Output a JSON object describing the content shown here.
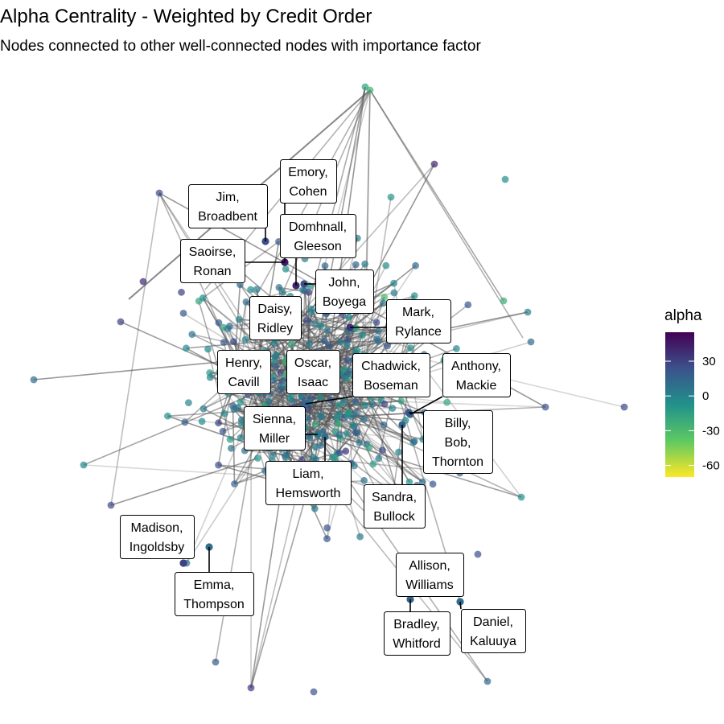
{
  "chart_data": {
    "type": "network",
    "title": "Alpha Centrality - Weighted by Credit Order",
    "subtitle": "Nodes connected to other well-connected nodes with importance factor",
    "legend": {
      "title": "alpha",
      "placement": "right",
      "colormap": "viridis (reversed: high = dark purple, low = yellow)",
      "range": [
        -70,
        55
      ],
      "ticks": [
        30,
        0,
        -30,
        -60
      ]
    },
    "grid": false,
    "highlight_edge_color": "#000000",
    "edge_color": "#555555",
    "labeled_nodes": [
      {
        "label": "Emory,\nCohen",
        "alpha": 5
      },
      {
        "label": "Jim,\nBroadbent",
        "alpha": 25
      },
      {
        "label": "Domhnall,\nGleeson",
        "alpha": 40
      },
      {
        "label": "Saoirse,\nRonan",
        "alpha": 45
      },
      {
        "label": "John,\nBoyega",
        "alpha": 25
      },
      {
        "label": "Daisy,\nRidley",
        "alpha": 20
      },
      {
        "label": "Mark,\nRylance",
        "alpha": 35
      },
      {
        "label": "Henry,\nCavill",
        "alpha": 10
      },
      {
        "label": "Oscar,\nIsaac",
        "alpha": 10
      },
      {
        "label": "Chadwick,\nBoseman",
        "alpha": 15
      },
      {
        "label": "Anthony,\nMackie",
        "alpha": 15
      },
      {
        "label": "Sienna,\nMiller",
        "alpha": 5
      },
      {
        "label": "Billy,\nBob,\nThornton",
        "alpha": 20
      },
      {
        "label": "Liam,\nHemsworth",
        "alpha": 10
      },
      {
        "label": "Sandra,\nBullock",
        "alpha": 15
      },
      {
        "label": "Madison,\nIngoldsby",
        "alpha": 30
      },
      {
        "label": "Emma,\nThompson",
        "alpha": 10
      },
      {
        "label": "Allison,\nWilliams",
        "alpha": 25
      },
      {
        "label": "Bradley,\nWhitford",
        "alpha": 15
      },
      {
        "label": "Daniel,\nKaluuya",
        "alpha": 10
      }
    ]
  }
}
